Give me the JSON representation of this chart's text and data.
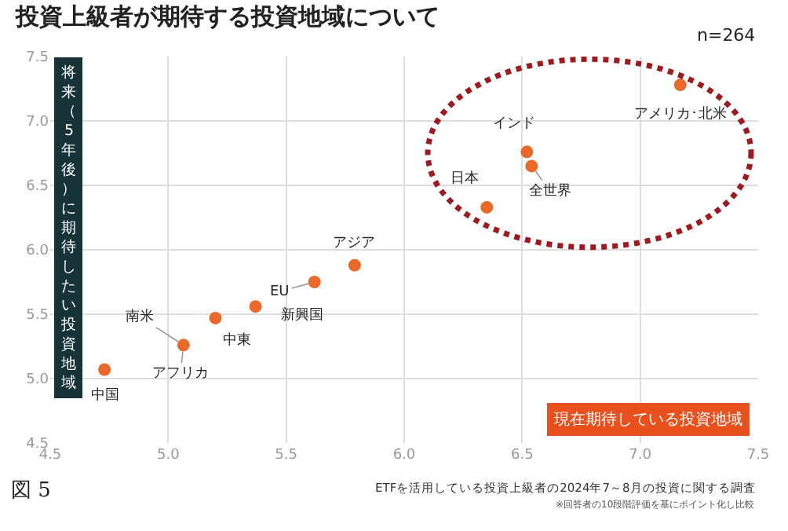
{
  "chart_data": {
    "type": "scatter",
    "title": "投資上級者が期待する投資地域について",
    "xlabel": "現在期待している投資地域",
    "ylabel": "将来（5年後）に期待したい投資地域",
    "x": [
      4.73,
      5.065,
      5.2,
      5.37,
      5.62,
      5.79,
      6.35,
      6.52,
      6.54,
      7.17
    ],
    "series": [
      {
        "color": "#e8692a",
        "values": [
          5.07,
          5.26,
          5.47,
          5.56,
          5.75,
          5.88,
          6.33,
          6.76,
          6.65,
          7.28
        ]
      }
    ],
    "annotations": [
      {
        "text": "中国",
        "x": 4.73,
        "y": 5.07
      },
      {
        "text": "アフリカ",
        "x": 5.065,
        "y": 5.26
      },
      {
        "text": "南米",
        "x": 5.065,
        "y": 5.26
      },
      {
        "text": "中東",
        "x": 5.2,
        "y": 5.47
      },
      {
        "text": "新興国",
        "x": 5.37,
        "y": 5.56
      },
      {
        "text": "EU",
        "x": 5.62,
        "y": 5.75
      },
      {
        "text": "アジア",
        "x": 5.79,
        "y": 5.88
      },
      {
        "text": "日本",
        "x": 6.35,
        "y": 6.33
      },
      {
        "text": "インド",
        "x": 6.52,
        "y": 6.76
      },
      {
        "text": "全世界",
        "x": 6.54,
        "y": 6.65
      },
      {
        "text": "アメリカ･北米",
        "x": 7.17,
        "y": 7.28
      },
      "n=264",
      "図 5",
      "ETFを活用している投資上級者の2024年7～8月の投資に関する調査",
      "※回答者の10段階評価を基にポイント化し比較"
    ],
    "xlim": [
      4.5,
      7.5
    ],
    "ylim": [
      4.5,
      7.5
    ],
    "xticks": [
      {
        "value": 4.5,
        "label": "4.5"
      },
      {
        "value": 5,
        "label": "5.0"
      },
      {
        "value": 5.5,
        "label": "5.5"
      },
      {
        "value": 6,
        "label": "6.0"
      },
      {
        "value": 6.5,
        "label": "6.5"
      },
      {
        "value": 7,
        "label": "7.0"
      },
      {
        "value": 7.5,
        "label": "7.5"
      }
    ],
    "yticks": [
      {
        "value": 4.5,
        "label": "4.5"
      },
      {
        "value": 5,
        "label": "5.0"
      },
      {
        "value": 5.5,
        "label": "5.5"
      },
      {
        "value": 6,
        "label": "6.0"
      },
      {
        "value": 6.5,
        "label": "6.5"
      },
      {
        "value": 7,
        "label": "7.0"
      },
      {
        "value": 7.5,
        "label": "7.5"
      }
    ],
    "grid": true,
    "marker": "circle"
  }
}
